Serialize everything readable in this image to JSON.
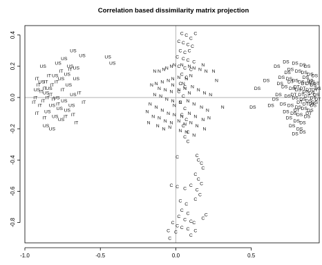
{
  "chart_data": {
    "type": "scatter",
    "title": "Correlation based dissimilarity matrix projection",
    "xlabel": "",
    "ylabel": "",
    "xlim": [
      -1.0,
      0.95
    ],
    "ylim": [
      -0.93,
      0.46
    ],
    "x_ticks": [
      -1.0,
      -0.5,
      0.0,
      0.5
    ],
    "x_tick_labels": [
      "-1.0",
      "-0.5",
      "0.0",
      "0.5"
    ],
    "y_ticks": [
      -0.8,
      -0.6,
      -0.4,
      -0.2,
      0.0,
      0.2,
      0.4
    ],
    "y_tick_labels": [
      "-0.8",
      "-0.6",
      "-0.4",
      "-0.2",
      "0.0",
      "0.2",
      "0.4"
    ],
    "reference_lines": {
      "x": 0.0,
      "y": 0.0
    },
    "grid": false,
    "legend": "none",
    "series": [
      {
        "label": "US",
        "points": [
          [
            -0.45,
            0.26
          ],
          [
            -0.42,
            0.22
          ],
          [
            -0.68,
            0.3
          ],
          [
            -0.62,
            0.27
          ],
          [
            -0.74,
            0.25
          ],
          [
            -0.78,
            0.22
          ],
          [
            -0.7,
            0.2
          ],
          [
            -0.66,
            0.19
          ],
          [
            -0.88,
            0.2
          ],
          [
            -0.72,
            0.15
          ],
          [
            -0.8,
            0.14
          ],
          [
            -0.76,
            0.12
          ],
          [
            -0.84,
            0.06
          ],
          [
            -0.86,
            0.03
          ],
          [
            -0.79,
            0.0
          ],
          [
            -0.68,
            0.02
          ],
          [
            -0.74,
            -0.02
          ],
          [
            -0.82,
            -0.05
          ],
          [
            -0.77,
            -0.07
          ],
          [
            -0.85,
            -0.09
          ],
          [
            -0.8,
            -0.12
          ],
          [
            -0.76,
            -0.14
          ],
          [
            -0.86,
            -0.18
          ],
          [
            -0.82,
            -0.2
          ],
          [
            -0.72,
            -0.08
          ],
          [
            -0.69,
            -0.05
          ],
          [
            -0.89,
            0.1
          ],
          [
            -0.92,
            0.05
          ],
          [
            -0.71,
            0.08
          ],
          [
            -0.66,
            0.12
          ]
        ]
      },
      {
        "label": "IT",
        "points": [
          [
            -0.92,
            0.12
          ],
          [
            -0.91,
            0.08
          ],
          [
            -0.89,
            0.04
          ],
          [
            -0.93,
            0.0
          ],
          [
            -0.88,
            -0.02
          ],
          [
            -0.9,
            -0.05
          ],
          [
            -0.86,
            0.1
          ],
          [
            -0.84,
            0.14
          ],
          [
            -0.79,
            0.1
          ],
          [
            -0.82,
            0.08
          ],
          [
            -0.87,
            0.06
          ],
          [
            -0.83,
            0.02
          ],
          [
            -0.64,
            0.03
          ],
          [
            -0.61,
            -0.03
          ],
          [
            -0.68,
            -0.11
          ],
          [
            -0.73,
            -0.12
          ],
          [
            -0.66,
            -0.16
          ],
          [
            -0.92,
            -0.1
          ],
          [
            -0.87,
            -0.13
          ],
          [
            -0.78,
            -0.04
          ],
          [
            -0.75,
            0.05
          ],
          [
            -0.81,
            -0.01
          ],
          [
            -0.7,
            0.18
          ],
          [
            -0.76,
            0.17
          ],
          [
            -0.94,
            -0.03
          ],
          [
            -0.85,
            0.0
          ]
        ]
      },
      {
        "label": "N",
        "points": [
          [
            -0.14,
            0.17
          ],
          [
            -0.11,
            0.17
          ],
          [
            -0.08,
            0.18
          ],
          [
            -0.06,
            0.19
          ],
          [
            -0.03,
            0.2
          ],
          [
            -0.01,
            0.21
          ],
          [
            0.04,
            0.21
          ],
          [
            0.09,
            0.2
          ],
          [
            0.12,
            0.19
          ],
          [
            0.16,
            0.18
          ],
          [
            0.2,
            0.17
          ],
          [
            0.25,
            0.17
          ],
          [
            0.18,
            0.21
          ],
          [
            0.1,
            0.14
          ],
          [
            0.07,
            0.12
          ],
          [
            0.02,
            0.13
          ],
          [
            -0.02,
            0.12
          ],
          [
            -0.05,
            0.11
          ],
          [
            -0.09,
            0.1
          ],
          [
            -0.13,
            0.09
          ],
          [
            -0.16,
            0.08
          ],
          [
            -0.11,
            0.06
          ],
          [
            -0.07,
            0.05
          ],
          [
            -0.03,
            0.04
          ],
          [
            0.02,
            0.05
          ],
          [
            0.06,
            0.06
          ],
          [
            0.11,
            0.07
          ],
          [
            0.15,
            0.05
          ],
          [
            0.19,
            0.03
          ],
          [
            0.23,
            0.02
          ],
          [
            -0.14,
            0.02
          ],
          [
            -0.1,
            0.01
          ],
          [
            -0.06,
            -0.01
          ],
          [
            -0.02,
            -0.02
          ],
          [
            0.03,
            -0.03
          ],
          [
            0.08,
            -0.02
          ],
          [
            0.12,
            -0.04
          ],
          [
            0.17,
            -0.06
          ],
          [
            0.21,
            -0.08
          ],
          [
            -0.17,
            -0.04
          ],
          [
            -0.13,
            -0.06
          ],
          [
            -0.09,
            -0.08
          ],
          [
            -0.05,
            -0.1
          ],
          [
            -0.01,
            -0.11
          ],
          [
            0.04,
            -0.12
          ],
          [
            0.09,
            -0.1
          ],
          [
            0.13,
            -0.12
          ],
          [
            0.18,
            -0.14
          ],
          [
            0.22,
            -0.13
          ],
          [
            -0.19,
            -0.09
          ],
          [
            -0.15,
            -0.12
          ],
          [
            -0.11,
            -0.13
          ],
          [
            -0.07,
            -0.15
          ],
          [
            -0.03,
            -0.16
          ],
          [
            0.02,
            -0.15
          ],
          [
            0.06,
            -0.17
          ],
          [
            0.1,
            -0.16
          ],
          [
            0.14,
            -0.18
          ],
          [
            0.19,
            -0.2
          ],
          [
            -0.12,
            -0.18
          ],
          [
            -0.08,
            -0.2
          ],
          [
            -0.04,
            -0.19
          ],
          [
            0.03,
            -0.21
          ],
          [
            0.07,
            -0.22
          ],
          [
            0.12,
            -0.24
          ],
          [
            -0.18,
            -0.16
          ],
          [
            -0.02,
            0.08
          ],
          [
            0.05,
            0.09
          ],
          [
            0.09,
            0.03
          ],
          [
            -0.01,
            -0.05
          ],
          [
            0.27,
            0.11
          ],
          [
            0.31,
            -0.06
          ]
        ]
      },
      {
        "label": "C",
        "points": [
          [
            0.04,
            0.41
          ],
          [
            0.07,
            0.4
          ],
          [
            0.1,
            0.38
          ],
          [
            0.13,
            0.41
          ],
          [
            0.02,
            0.36
          ],
          [
            0.05,
            0.35
          ],
          [
            0.08,
            0.34
          ],
          [
            0.11,
            0.33
          ],
          [
            0.03,
            0.3
          ],
          [
            0.06,
            0.29
          ],
          [
            0.09,
            0.3
          ],
          [
            0.01,
            0.26
          ],
          [
            0.05,
            0.25
          ],
          [
            0.08,
            0.24
          ],
          [
            0.12,
            0.23
          ],
          [
            0.02,
            0.2
          ],
          [
            0.06,
            0.19
          ],
          [
            0.1,
            0.18
          ],
          [
            0.04,
            0.15
          ],
          [
            0.07,
            0.13
          ],
          [
            0.03,
            0.09
          ],
          [
            0.06,
            0.07
          ],
          [
            0.02,
            0.04
          ],
          [
            0.05,
            0.01
          ],
          [
            0.03,
            -0.03
          ],
          [
            0.06,
            -0.07
          ],
          [
            0.04,
            -0.11
          ],
          [
            0.07,
            -0.14
          ],
          [
            0.05,
            -0.18
          ],
          [
            0.08,
            -0.22
          ],
          [
            0.06,
            -0.25
          ],
          [
            0.08,
            -0.28
          ],
          [
            0.01,
            -0.38
          ],
          [
            0.14,
            -0.37
          ],
          [
            0.15,
            -0.4
          ],
          [
            0.17,
            -0.42
          ],
          [
            0.18,
            -0.45
          ],
          [
            0.13,
            -0.49
          ],
          [
            0.15,
            -0.52
          ],
          [
            0.17,
            -0.55
          ],
          [
            0.14,
            -0.59
          ],
          [
            0.16,
            -0.62
          ],
          [
            0.13,
            -0.65
          ],
          [
            -0.03,
            -0.56
          ],
          [
            0.01,
            -0.57
          ],
          [
            0.06,
            -0.58
          ],
          [
            0.1,
            -0.56
          ],
          [
            0.03,
            -0.66
          ],
          [
            0.07,
            -0.68
          ],
          [
            0.04,
            -0.72
          ],
          [
            0.08,
            -0.74
          ],
          [
            0.02,
            -0.76
          ],
          [
            0.06,
            -0.78
          ],
          [
            0.1,
            -0.79
          ],
          [
            0.12,
            -0.8
          ],
          [
            -0.02,
            -0.8
          ],
          [
            0.01,
            -0.82
          ],
          [
            0.04,
            -0.83
          ],
          [
            0.08,
            -0.84
          ],
          [
            -0.05,
            -0.85
          ],
          [
            0.0,
            -0.86
          ],
          [
            0.13,
            -0.85
          ],
          [
            0.18,
            -0.77
          ],
          [
            0.2,
            -0.75
          ],
          [
            0.1,
            -0.88
          ],
          [
            -0.04,
            -0.9
          ]
        ]
      },
      {
        "label": "DS",
        "points": [
          [
            0.67,
            0.2
          ],
          [
            0.73,
            0.23
          ],
          [
            0.79,
            0.22
          ],
          [
            0.84,
            0.21
          ],
          [
            0.87,
            0.2
          ],
          [
            0.76,
            0.18
          ],
          [
            0.81,
            0.17
          ],
          [
            0.85,
            0.16
          ],
          [
            0.89,
            0.15
          ],
          [
            0.92,
            0.14
          ],
          [
            0.7,
            0.13
          ],
          [
            0.75,
            0.12
          ],
          [
            0.79,
            0.11
          ],
          [
            0.83,
            0.1
          ],
          [
            0.88,
            0.09
          ],
          [
            0.91,
            0.08
          ],
          [
            0.72,
            0.07
          ],
          [
            0.77,
            0.06
          ],
          [
            0.81,
            0.05
          ],
          [
            0.86,
            0.04
          ],
          [
            0.9,
            0.03
          ],
          [
            0.93,
            0.02
          ],
          [
            0.68,
            0.02
          ],
          [
            0.74,
            0.01
          ],
          [
            0.79,
            0.0
          ],
          [
            0.84,
            -0.01
          ],
          [
            0.88,
            -0.02
          ],
          [
            0.92,
            -0.03
          ],
          [
            0.71,
            -0.04
          ],
          [
            0.76,
            -0.05
          ],
          [
            0.81,
            -0.06
          ],
          [
            0.85,
            -0.07
          ],
          [
            0.89,
            -0.08
          ],
          [
            0.73,
            -0.09
          ],
          [
            0.78,
            -0.1
          ],
          [
            0.82,
            -0.11
          ],
          [
            0.87,
            -0.12
          ],
          [
            0.75,
            -0.13
          ],
          [
            0.8,
            -0.15
          ],
          [
            0.84,
            -0.16
          ],
          [
            0.77,
            -0.18
          ],
          [
            0.82,
            -0.2
          ],
          [
            0.79,
            -0.23
          ],
          [
            0.84,
            -0.22
          ],
          [
            0.6,
            0.11
          ],
          [
            0.54,
            0.06
          ],
          [
            0.51,
            -0.06
          ],
          [
            0.63,
            -0.05
          ],
          [
            0.9,
            0.1
          ],
          [
            0.94,
            0.06
          ],
          [
            0.86,
            0.13
          ],
          [
            0.74,
            0.16
          ],
          [
            0.69,
            0.09
          ],
          [
            0.66,
            -0.01
          ],
          [
            0.91,
            -0.05
          ]
        ]
      },
      {
        "label": "DT",
        "points": [
          [
            0.8,
            0.07
          ],
          [
            0.84,
            0.06
          ],
          [
            0.88,
            0.05
          ],
          [
            0.92,
            0.05
          ],
          [
            0.78,
            0.02
          ],
          [
            0.83,
            0.02
          ],
          [
            0.87,
            0.01
          ],
          [
            0.91,
            0.0
          ],
          [
            0.82,
            -0.03
          ],
          [
            0.86,
            -0.04
          ],
          [
            0.9,
            -0.04
          ],
          [
            0.94,
            -0.01
          ],
          [
            0.85,
            0.09
          ],
          [
            0.89,
            0.11
          ],
          [
            0.93,
            0.09
          ],
          [
            0.76,
            0.1
          ],
          [
            0.8,
            -0.08
          ],
          [
            0.88,
            -0.1
          ]
        ]
      }
    ]
  }
}
